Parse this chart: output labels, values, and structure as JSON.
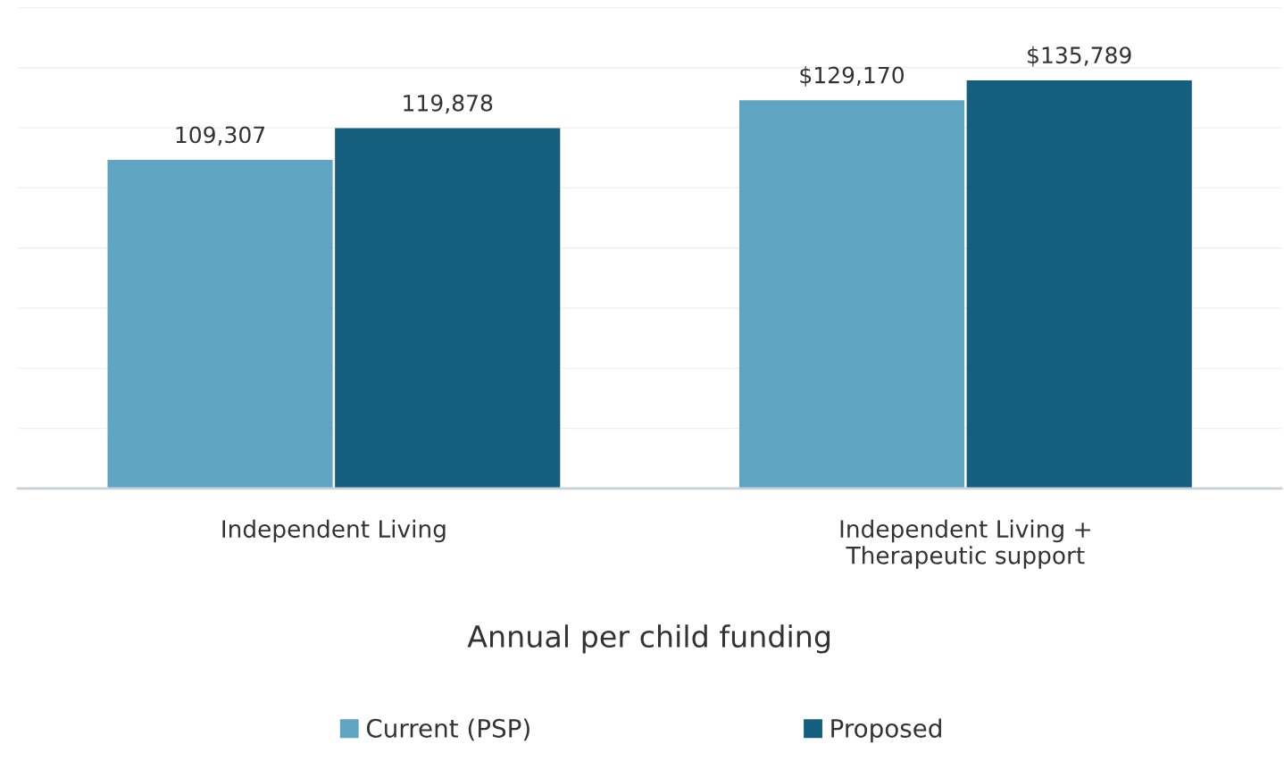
{
  "chart_data": {
    "type": "bar",
    "xlabel": "Annual per child funding",
    "categories": [
      "Independent Living",
      "Independent Living +\nTherapeutic support"
    ],
    "series": [
      {
        "name": "Current (PSP)",
        "color": "#5fa5c1",
        "values": [
          109307,
          129170
        ],
        "value_labels": [
          "109,307",
          "$129,170"
        ]
      },
      {
        "name": "Proposed",
        "color": "#135f7d",
        "values": [
          119878,
          135789
        ],
        "value_labels": [
          "119,878",
          "$135,789"
        ]
      }
    ],
    "tick_labels": "x",
    "grid": "y",
    "legend": "bottom"
  }
}
